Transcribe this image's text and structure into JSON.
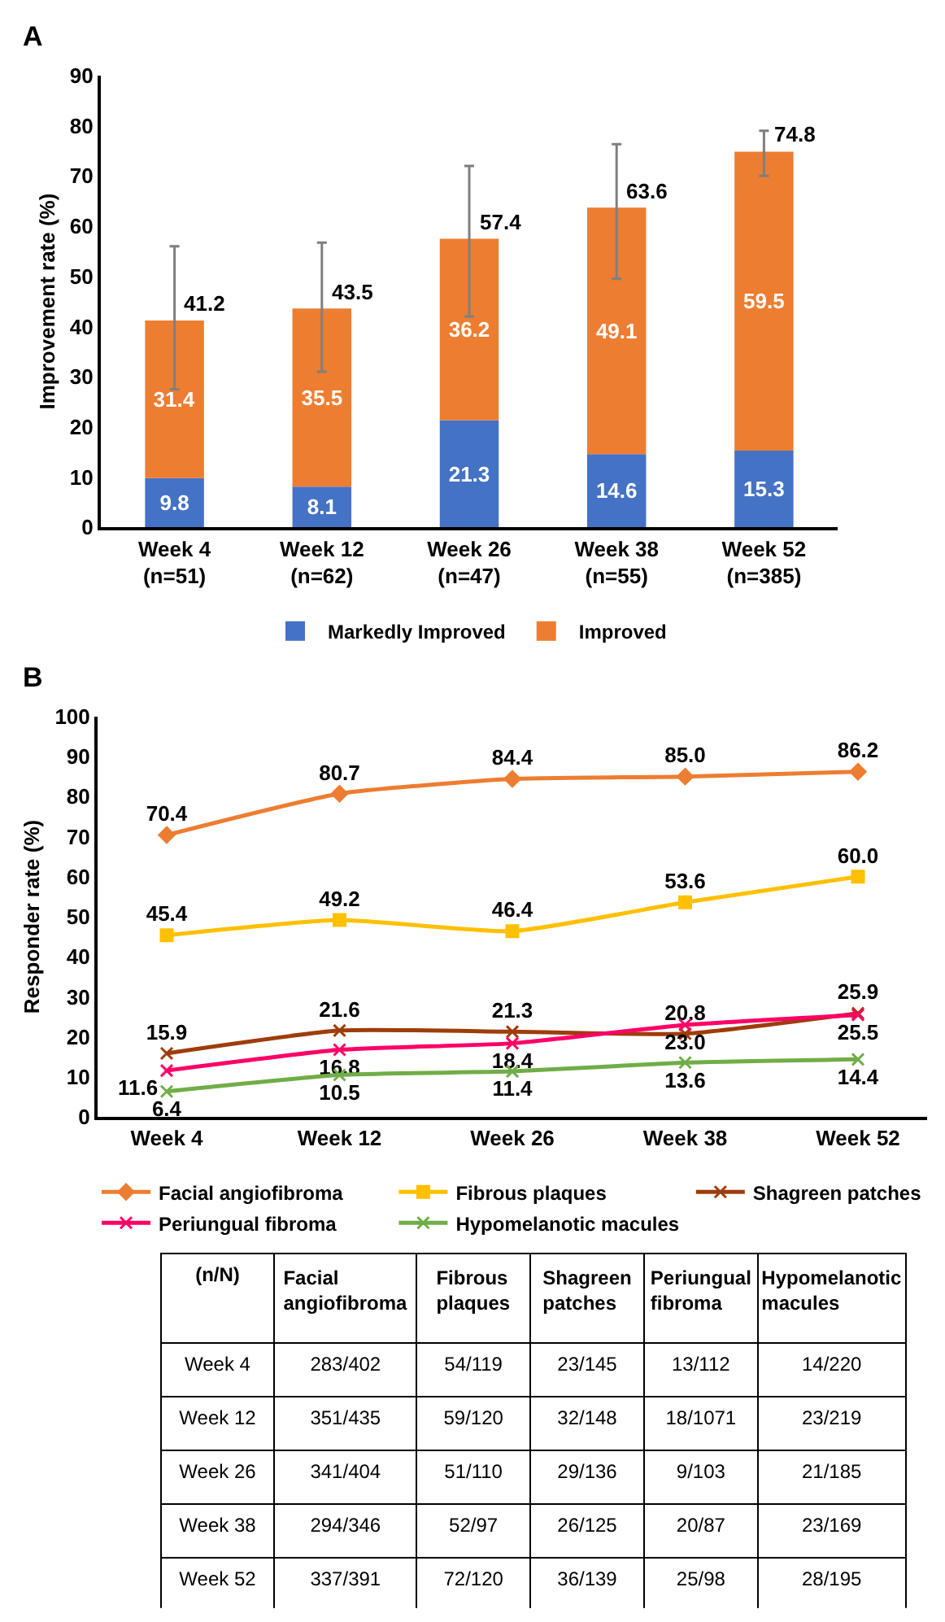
{
  "chart_data": [
    {
      "type": "bar",
      "title": "A",
      "ylabel": "Improvement rate (%)",
      "stacked": true,
      "legend": "bottom",
      "data_labels": true,
      "categories": [
        "Week 4\n(n=51)",
        "Week 12\n(n=62)",
        "Week 26\n(n=47)",
        "Week 38\n(n=55)",
        "Week 52\n(n=385)"
      ],
      "series": [
        {
          "name": "Markedly Improved",
          "color": "#4472c4",
          "values": [
            9.8,
            8.1,
            21.3,
            14.6,
            15.3
          ]
        },
        {
          "name": "Improved",
          "color": "#ed7d31",
          "values": [
            31.4,
            35.5,
            36.2,
            49.1,
            59.5
          ],
          "errors": [
            [
              27.5,
              56
            ],
            [
              31,
              56.7
            ],
            [
              42,
              72
            ],
            [
              49.5,
              76.3
            ],
            [
              70,
              79
            ]
          ]
        }
      ],
      "totals": [
        "41.2",
        "43.5",
        "57.4",
        "63.6",
        "74.8"
      ],
      "ylim": [
        0,
        90
      ],
      "yticks": [
        0,
        10,
        20,
        30,
        40,
        50,
        60,
        70,
        80,
        90
      ]
    },
    {
      "type": "line",
      "title": "B",
      "ylabel": "Responder rate (%)",
      "legend": "bottom",
      "categories": [
        "Week 4",
        "Week 12",
        "Week 26",
        "Week 38",
        "Week 52"
      ],
      "series": [
        {
          "name": "Facial angiofibroma",
          "color": "#ed7d31",
          "marker": "diamond",
          "values": [
            70.4,
            80.7,
            84.4,
            85.0,
            86.2
          ],
          "value_labels": [
            "70.4",
            "80.7",
            "84.4",
            "85.0",
            "86.2"
          ]
        },
        {
          "name": "Fibrous plaques",
          "color": "#ffc000",
          "marker": "square",
          "values": [
            45.4,
            49.2,
            46.4,
            53.6,
            60.0
          ],
          "value_labels": [
            "45.4",
            "49.2",
            "46.4",
            "53.6",
            "60.0"
          ]
        },
        {
          "name": "Shagreen patches",
          "color": "#9e3d0a",
          "marker": "cross",
          "values": [
            15.9,
            21.6,
            21.3,
            20.8,
            25.9
          ],
          "value_labels": [
            "15.9",
            "21.6",
            "21.3",
            "20.8",
            "25.9"
          ]
        },
        {
          "name": "Periungual fibroma",
          "color": "#ff0066",
          "marker": "cross",
          "values": [
            11.6,
            16.8,
            18.4,
            23.0,
            25.5
          ],
          "value_labels": [
            "11.6",
            "16.8",
            "18.4",
            "23.0",
            "25.5"
          ]
        },
        {
          "name": "Hypomelanotic macules",
          "color": "#70ad47",
          "marker": "cross",
          "values": [
            6.4,
            10.5,
            11.4,
            13.6,
            14.4
          ],
          "value_labels": [
            "6.4",
            "10.5",
            "11.4",
            "13.6",
            "14.4"
          ]
        }
      ],
      "ylim": [
        0,
        100
      ],
      "yticks": [
        0,
        10,
        20,
        30,
        40,
        50,
        60,
        70,
        80,
        90,
        100
      ]
    },
    {
      "type": "other",
      "annotations": [
        "(n/N)"
      ],
      "categories": [
        "Facial angiofibroma",
        "Fibrous plaques",
        "Shagreen patches",
        "Periungual fibroma",
        "Hypomelanotic macules"
      ],
      "y_categories": [
        "Week 4",
        "Week 12",
        "Week 26",
        "Week 38",
        "Week 52"
      ],
      "cell_labels": [
        [
          "283/402",
          "54/119",
          "23/145",
          "13/112",
          "14/220"
        ],
        [
          "351/435",
          "59/120",
          "32/148",
          "18/1071",
          "23/219"
        ],
        [
          "341/404",
          "51/110",
          "29/136",
          "9/103",
          "21/185"
        ],
        [
          "294/346",
          "52/97",
          "26/125",
          "20/87",
          "23/169"
        ],
        [
          "337/391",
          "72/120",
          "36/139",
          "25/98",
          "28/195"
        ]
      ]
    }
  ]
}
